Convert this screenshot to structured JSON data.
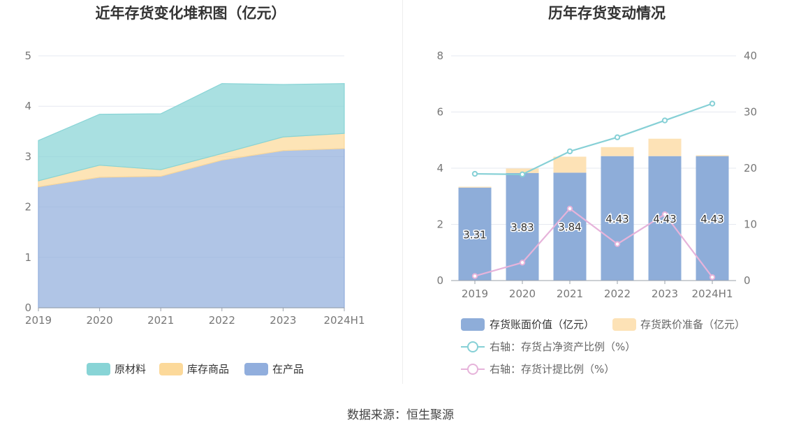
{
  "source_text": "数据来源：恒生聚源",
  "colors": {
    "raw": "#88D4D6",
    "finished": "#FCD99A",
    "wip": "#91AEDD",
    "book": "#8EADD9",
    "provision": "#FDE2B6",
    "net_ratio": "#86D0D6",
    "prov_ratio": "#E6B3DA",
    "grid": "#E6E8F0",
    "axis_text": "#777777"
  },
  "chart_data": [
    {
      "type": "area",
      "title": "近年存货变化堆积图（亿元）",
      "xlabel": "",
      "ylabel": "",
      "stacked": true,
      "x": [
        "2019",
        "2020",
        "2021",
        "2022",
        "2023",
        "2024H1"
      ],
      "ylim": [
        0,
        5
      ],
      "yticks": [
        "0",
        "1",
        "2",
        "3",
        "4",
        "5"
      ],
      "legend_position": "bottom",
      "series": [
        {
          "name": "在产品",
          "values": [
            2.4,
            2.59,
            2.61,
            2.93,
            3.12,
            3.16
          ]
        },
        {
          "name": "库存商品",
          "values": [
            0.12,
            0.24,
            0.13,
            0.13,
            0.27,
            0.3
          ]
        },
        {
          "name": "原材料",
          "values": [
            0.8,
            1.01,
            1.11,
            1.39,
            1.04,
            0.99
          ]
        }
      ],
      "legend": [
        "原材料",
        "库存商品",
        "在产品"
      ]
    },
    {
      "type": "bar",
      "title": "历年存货变动情况",
      "xlabel": "",
      "ylabel": "",
      "categories": [
        "2019",
        "2020",
        "2021",
        "2022",
        "2023",
        "2024H1"
      ],
      "ylim": [
        0,
        8
      ],
      "yticks": [
        "0",
        "2",
        "4",
        "6",
        "8"
      ],
      "y2lim": [
        0,
        40
      ],
      "y2ticks": [
        "0",
        "10",
        "20",
        "30",
        "40"
      ],
      "legend_position": "bottom",
      "series": [
        {
          "name": "存货账面价值（亿元）",
          "kind": "bar",
          "stack": "a",
          "values": [
            3.31,
            3.83,
            3.84,
            4.43,
            4.43,
            4.43
          ],
          "labels": [
            "3.31",
            "3.83",
            "3.84",
            "4.43",
            "4.43",
            "4.43"
          ]
        },
        {
          "name": "存货跌价准备（亿元）",
          "kind": "bar",
          "stack": "a",
          "values": [
            0.03,
            0.16,
            0.57,
            0.32,
            0.62,
            0.03
          ]
        },
        {
          "name": "右轴：存货占净资产比例（%）",
          "kind": "line",
          "axis": "right",
          "values": [
            19.0,
            18.9,
            23.0,
            25.5,
            28.5,
            31.5
          ]
        },
        {
          "name": "右轴：存货计提比例（%）",
          "kind": "line",
          "axis": "right",
          "values": [
            0.8,
            3.2,
            12.8,
            6.5,
            11.8,
            0.6
          ]
        }
      ]
    }
  ]
}
